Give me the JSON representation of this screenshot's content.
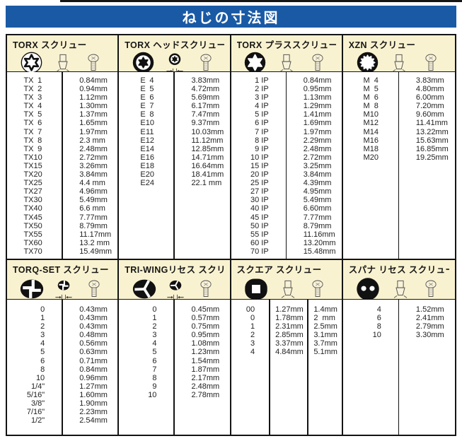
{
  "title": "ねじの寸法図",
  "unit": "mm",
  "colors": {
    "banner_bg": "#1a5aa5",
    "panel_header_bg": "#f9f2d0",
    "border": "#141414",
    "text": "#222222"
  },
  "panels": [
    {
      "id": "torx",
      "title": "TORX スクリュー",
      "icons": [
        "torx-recess-icon",
        "bit-profile-icon",
        "screw-side-icon"
      ],
      "rows": [
        [
          "TX",
          "1",
          "0.84mm"
        ],
        [
          "TX",
          "2",
          "0.94mm"
        ],
        [
          "TX",
          "3",
          "1.12mm"
        ],
        [
          "TX",
          "4",
          "1.30mm"
        ],
        [
          "TX",
          "5",
          "1.37mm"
        ],
        [
          "TX",
          "6",
          "1.65mm"
        ],
        [
          "TX",
          "7",
          "1.97mm"
        ],
        [
          "TX",
          "8",
          "2.3 mm"
        ],
        [
          "TX",
          "9",
          "2.48mm"
        ],
        [
          "TX",
          "10",
          "2.72mm"
        ],
        [
          "TX",
          "15",
          "3.26mm"
        ],
        [
          "TX",
          "20",
          "3.84mm"
        ],
        [
          "TX",
          "25",
          "4.4 mm"
        ],
        [
          "TX",
          "27",
          "4.96mm"
        ],
        [
          "TX",
          "30",
          "5.49mm"
        ],
        [
          "TX",
          "40",
          "6.6 mm"
        ],
        [
          "TX",
          "45",
          "7.77mm"
        ],
        [
          "TX",
          "50",
          "8.79mm"
        ],
        [
          "TX",
          "55",
          "11.17mm"
        ],
        [
          "TX",
          "60",
          "13.2 mm"
        ],
        [
          "TX",
          "70",
          "15.49mm"
        ]
      ]
    },
    {
      "id": "torx-head",
      "title": "TORX ヘッドスクリュー",
      "icons": [
        "torx-external-head-icon",
        "socket-front-icon",
        "screw-side-icon"
      ],
      "rows": [
        [
          "E",
          "4",
          "3.83mm"
        ],
        [
          "E",
          "5",
          "4.72mm"
        ],
        [
          "E",
          "6",
          "5.69mm"
        ],
        [
          "E",
          "7",
          "6.17mm"
        ],
        [
          "E",
          "8",
          "7.47mm"
        ],
        [
          "E",
          "10",
          "9.37mm"
        ],
        [
          "E",
          "11",
          "10.03mm"
        ],
        [
          "E",
          "12",
          "11.12mm"
        ],
        [
          "E",
          "14",
          "12.85mm"
        ],
        [
          "E",
          "16",
          "14.71mm"
        ],
        [
          "E",
          "18",
          "16.64mm"
        ],
        [
          "E",
          "20",
          "18.41mm"
        ],
        [
          "E",
          "24",
          "22.1 mm"
        ]
      ]
    },
    {
      "id": "torx-plus",
      "title": "TORX プラススクリュー",
      "icons": [
        "torx-plus-recess-icon",
        "bit-profile-icon",
        "screw-side-icon"
      ],
      "rows": [
        [
          "1 IP",
          "0.84mm"
        ],
        [
          "2 IP",
          "0.95mm"
        ],
        [
          "3 IP",
          "1.13mm"
        ],
        [
          "4 IP",
          "1.29mm"
        ],
        [
          "5 IP",
          "1.41mm"
        ],
        [
          "6 IP",
          "1.69mm"
        ],
        [
          "7 IP",
          "1.97mm"
        ],
        [
          "8 IP",
          "2.29mm"
        ],
        [
          "9 IP",
          "2.48mm"
        ],
        [
          "10 IP",
          "2.72mm"
        ],
        [
          "15 IP",
          "3.25mm"
        ],
        [
          "20 IP",
          "3.84mm"
        ],
        [
          "25 IP",
          "4.39mm"
        ],
        [
          "27 IP",
          "4.95mm"
        ],
        [
          "30 IP",
          "5.49mm"
        ],
        [
          "40 IP",
          "6.60mm"
        ],
        [
          "45 IP",
          "7.77mm"
        ],
        [
          "50 IP",
          "8.79mm"
        ],
        [
          "55 IP",
          "11.16mm"
        ],
        [
          "60 IP",
          "13.20mm"
        ],
        [
          "70 IP",
          "15.48mm"
        ]
      ]
    },
    {
      "id": "xzn",
      "title": "XZN スクリュー",
      "icons": [
        "xzn-recess-icon",
        "bit-profile-icon",
        "screw-side-icon"
      ],
      "rows": [
        [
          "M",
          "4",
          "3.83mm"
        ],
        [
          "M",
          "5",
          "4.80mm"
        ],
        [
          "M",
          "6",
          "6.00mm"
        ],
        [
          "M",
          "8",
          "7.20mm"
        ],
        [
          "M",
          "10",
          "9.60mm"
        ],
        [
          "M",
          "12",
          "11.41mm"
        ],
        [
          "M",
          "14",
          "13.22mm"
        ],
        [
          "M",
          "16",
          "15.63mm"
        ],
        [
          "M",
          "18",
          "16.85mm"
        ],
        [
          "M",
          "20",
          "19.25mm"
        ]
      ]
    },
    {
      "id": "torq-set",
      "title": "TORQ-SET スクリュー",
      "icons": [
        "torq-set-recess-icon",
        "recess-dimension-icon",
        "screw-side-icon"
      ],
      "rows": [
        [
          "0",
          "0.43mm"
        ],
        [
          "1",
          "0.43mm"
        ],
        [
          "2",
          "0.43mm"
        ],
        [
          "3",
          "0.48mm"
        ],
        [
          "4",
          "0.56mm"
        ],
        [
          "5",
          "0.63mm"
        ],
        [
          "6",
          "0.71mm"
        ],
        [
          "8",
          "0.84mm"
        ],
        [
          "10",
          "0.96mm"
        ],
        [
          "1/4\"",
          "1.27mm"
        ],
        [
          "5/16\"",
          "1.60mm"
        ],
        [
          "3/8\"",
          "1.90mm"
        ],
        [
          "7/16\"",
          "2.23mm"
        ],
        [
          "1/2\"",
          "2.54mm"
        ]
      ]
    },
    {
      "id": "tri-wing",
      "title": "TRI-WINGリセス スクリュー",
      "icons": [
        "tri-wing-recess-icon",
        "recess-dimension-icon",
        "screw-side-icon"
      ],
      "rows": [
        [
          "0",
          "0.45mm"
        ],
        [
          "1",
          "0.57mm"
        ],
        [
          "2",
          "0.75mm"
        ],
        [
          "3",
          "0.95mm"
        ],
        [
          "4",
          "1.08mm"
        ],
        [
          "5",
          "1.23mm"
        ],
        [
          "6",
          "1.54mm"
        ],
        [
          "7",
          "1.87mm"
        ],
        [
          "8",
          "2.17mm"
        ],
        [
          "9",
          "2.48mm"
        ],
        [
          "10",
          "2.78mm"
        ]
      ]
    },
    {
      "id": "square",
      "title": "スクエア スクリュー",
      "icons": [
        "square-recess-icon",
        "bit-profile-icon",
        "screw-side-icon"
      ],
      "rows": [
        [
          "00",
          "1.27mm",
          "1.4mm"
        ],
        [
          "0",
          "1.78mm",
          "2  mm"
        ],
        [
          "1",
          "2.31mm",
          "2.5mm"
        ],
        [
          "2",
          "2.85mm",
          "3.1mm"
        ],
        [
          "3",
          "3.37mm",
          "3.7mm"
        ],
        [
          "4",
          "4.84mm",
          "5.1mm"
        ]
      ]
    },
    {
      "id": "spanner",
      "title": "スパナ リセス スクリュー",
      "icons": [
        "spanner-recess-icon",
        "bit-profile-icon",
        "screw-side-icon"
      ],
      "rows": [
        [
          "4",
          "1.52mm"
        ],
        [
          "6",
          "2.41mm"
        ],
        [
          "8",
          "2.79mm"
        ],
        [
          "10",
          "3.30mm"
        ]
      ]
    }
  ]
}
